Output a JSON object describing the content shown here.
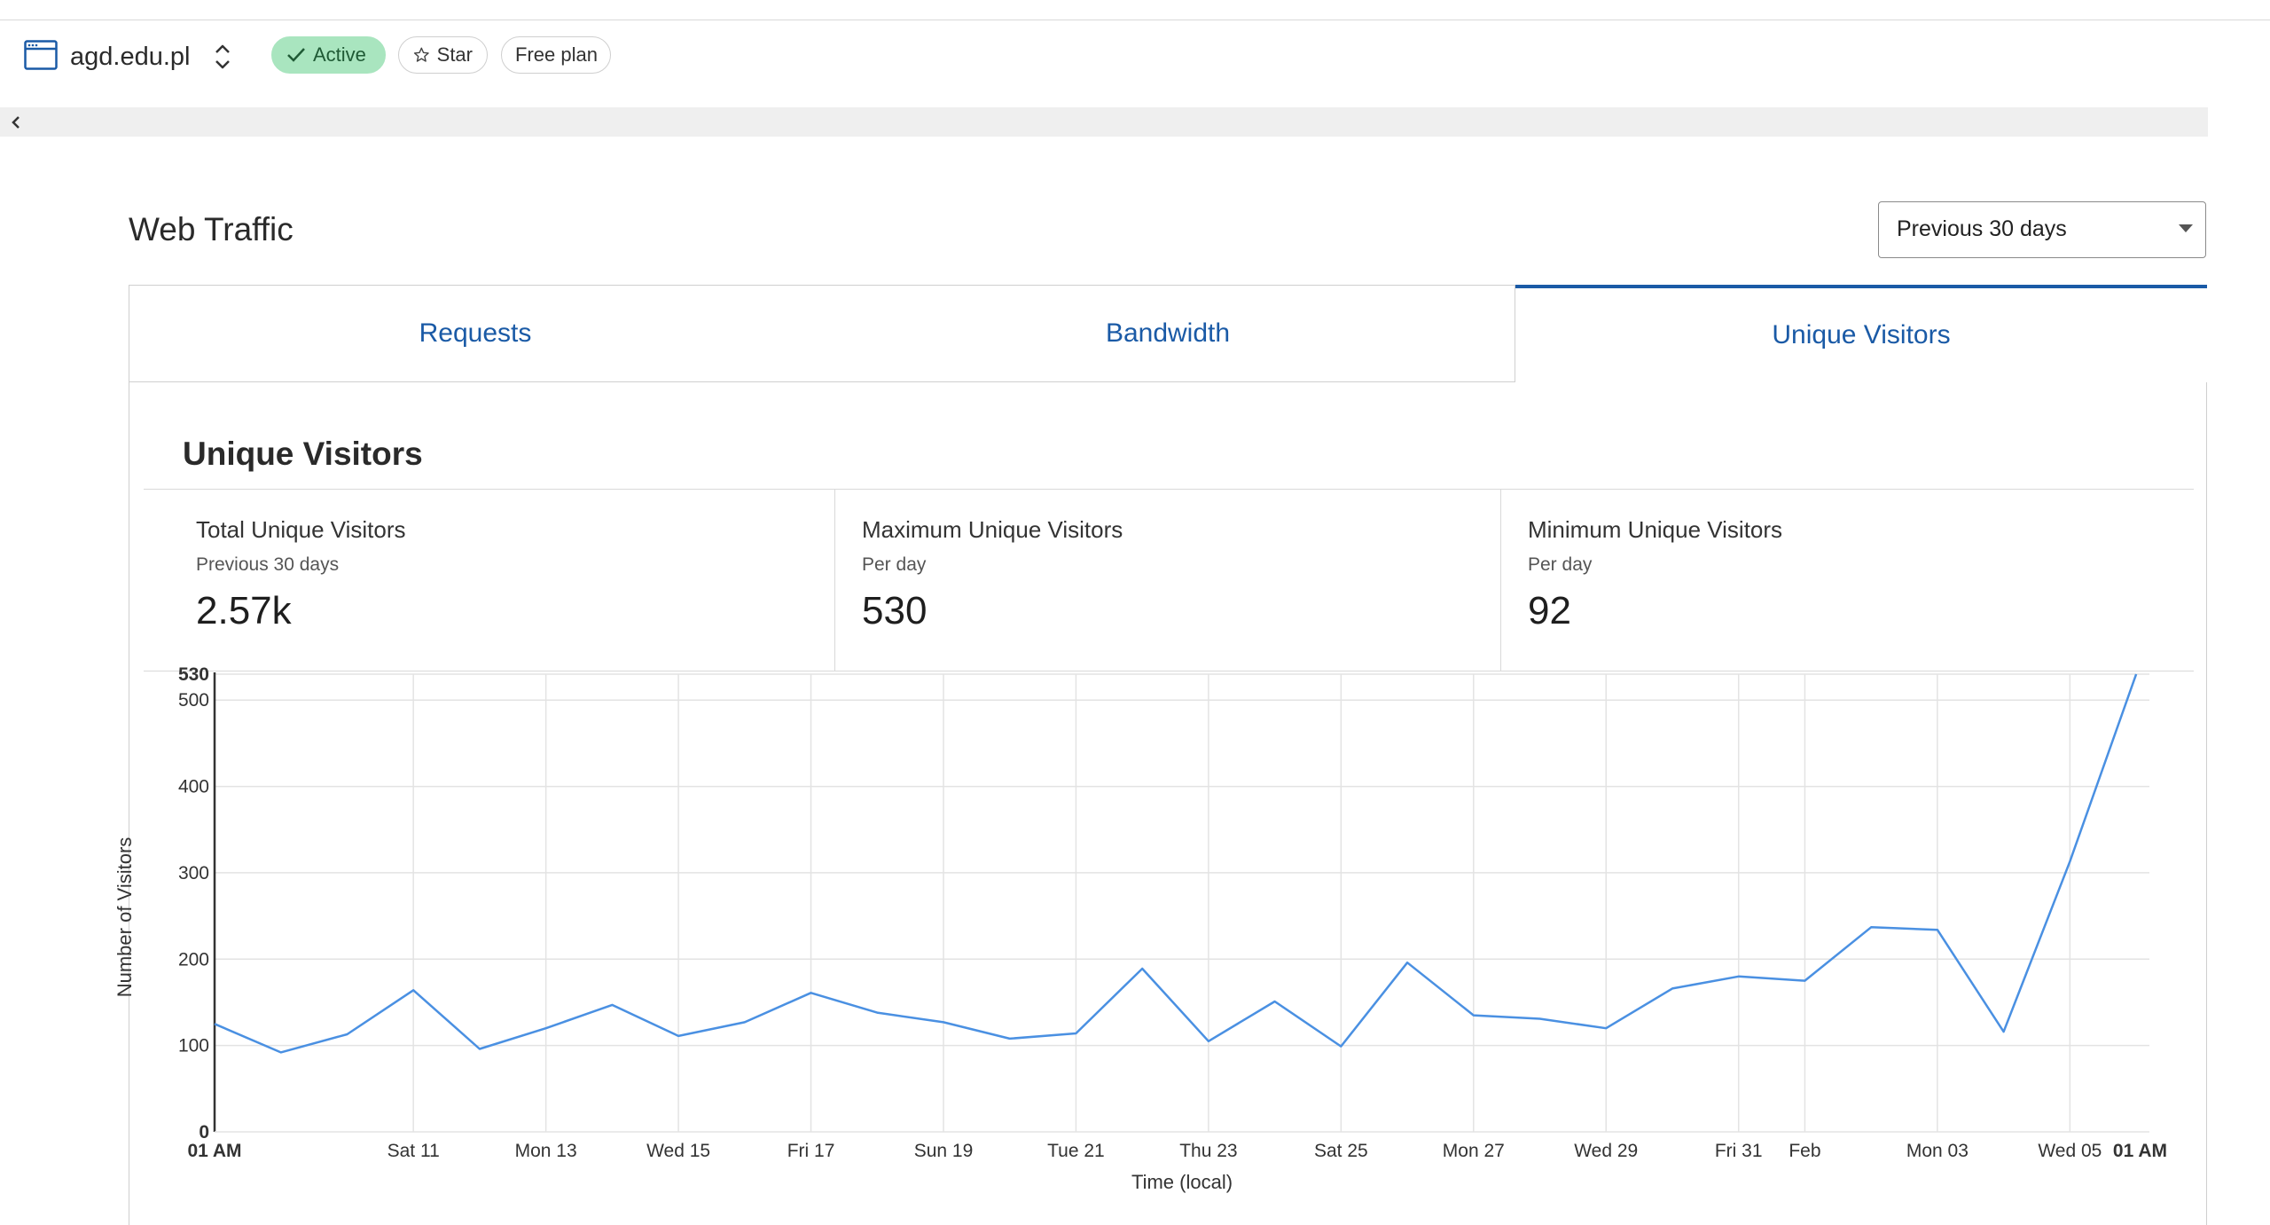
{
  "header": {
    "site_name": "agd.edu.pl",
    "badges": {
      "active": "Active",
      "star": "Star",
      "plan": "Free plan"
    }
  },
  "web_traffic": {
    "title": "Web Traffic",
    "range_select": {
      "value": "Previous 30 days"
    },
    "tabs": [
      {
        "label": "Requests",
        "active": false
      },
      {
        "label": "Bandwidth",
        "active": false
      },
      {
        "label": "Unique Visitors",
        "active": true
      }
    ]
  },
  "panel": {
    "title": "Unique Visitors",
    "stats": [
      {
        "label": "Total Unique Visitors",
        "sub": "Previous 30 days",
        "value": "2.57k"
      },
      {
        "label": "Maximum Unique Visitors",
        "sub": "Per day",
        "value": "530"
      },
      {
        "label": "Minimum Unique Visitors",
        "sub": "Per day",
        "value": "92"
      }
    ]
  },
  "colors": {
    "accent": "#1a5aa6",
    "line": "#4a90e2",
    "active_badge": "#a9e5bf"
  },
  "chart_data": {
    "type": "line",
    "xlabel": "Time (local)",
    "ylabel": "Number of Visitors",
    "ylim": [
      0,
      530
    ],
    "y_ticks": [
      {
        "label": "0",
        "value": 0,
        "bold": true
      },
      {
        "label": "100",
        "value": 100
      },
      {
        "label": "200",
        "value": 200
      },
      {
        "label": "300",
        "value": 300
      },
      {
        "label": "400",
        "value": 400
      },
      {
        "label": "500",
        "value": 500
      },
      {
        "label": "530",
        "value": 530,
        "bold": true
      }
    ],
    "x_range": [
      0,
      29.2
    ],
    "x_ticks": [
      {
        "label": "01 AM",
        "x": 0,
        "bold": true
      },
      {
        "label": "Sat 11",
        "x": 3
      },
      {
        "label": "Mon 13",
        "x": 5
      },
      {
        "label": "Wed 15",
        "x": 7
      },
      {
        "label": "Fri 17",
        "x": 9
      },
      {
        "label": "Sun 19",
        "x": 11
      },
      {
        "label": "Tue 21",
        "x": 13
      },
      {
        "label": "Thu 23",
        "x": 15
      },
      {
        "label": "Sat 25",
        "x": 17
      },
      {
        "label": "Mon 27",
        "x": 19
      },
      {
        "label": "Wed 29",
        "x": 21
      },
      {
        "label": "Fri 31",
        "x": 23
      },
      {
        "label": "Feb",
        "x": 24
      },
      {
        "label": "Mon 03",
        "x": 26
      },
      {
        "label": "Wed 05",
        "x": 28
      },
      {
        "label": "01 AM",
        "x": 29.2,
        "bold": true
      }
    ],
    "grid": true,
    "grid_x": [
      0,
      3,
      5,
      7,
      9,
      11,
      13,
      15,
      17,
      19,
      21,
      23,
      24,
      26,
      28
    ],
    "series": [
      {
        "values": [
          {
            "x": 0,
            "y": 125
          },
          {
            "x": 1,
            "y": 92
          },
          {
            "x": 2,
            "y": 113
          },
          {
            "x": 3,
            "y": 164
          },
          {
            "x": 4,
            "y": 96
          },
          {
            "x": 5,
            "y": 120
          },
          {
            "x": 6,
            "y": 147
          },
          {
            "x": 7,
            "y": 111
          },
          {
            "x": 8,
            "y": 127
          },
          {
            "x": 9,
            "y": 161
          },
          {
            "x": 10,
            "y": 138
          },
          {
            "x": 11,
            "y": 127
          },
          {
            "x": 12,
            "y": 108
          },
          {
            "x": 13,
            "y": 114
          },
          {
            "x": 14,
            "y": 189
          },
          {
            "x": 15,
            "y": 105
          },
          {
            "x": 16,
            "y": 151
          },
          {
            "x": 17,
            "y": 99
          },
          {
            "x": 18,
            "y": 196
          },
          {
            "x": 19,
            "y": 135
          },
          {
            "x": 20,
            "y": 131
          },
          {
            "x": 21,
            "y": 120
          },
          {
            "x": 22,
            "y": 166
          },
          {
            "x": 23,
            "y": 180
          },
          {
            "x": 24,
            "y": 175
          },
          {
            "x": 25,
            "y": 237
          },
          {
            "x": 26,
            "y": 234
          },
          {
            "x": 27,
            "y": 116
          },
          {
            "x": 28,
            "y": 313
          },
          {
            "x": 29,
            "y": 530
          }
        ]
      }
    ]
  }
}
